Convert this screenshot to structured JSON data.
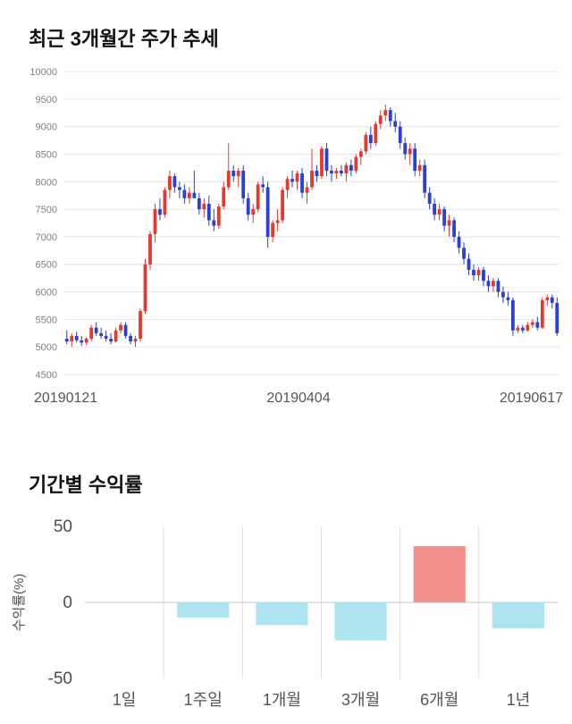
{
  "price_section": {
    "title": "최근 3개월간 주가 추세"
  },
  "returns_section": {
    "title": "기간별 수익률"
  },
  "chart_data": [
    {
      "type": "candlestick",
      "title": "최근 3개월간 주가 추세",
      "ylim": [
        4500,
        10000
      ],
      "ytick_step": 500,
      "xtick_labels": [
        "20190121",
        "20190404",
        "20190617"
      ],
      "colors": {
        "up": "#e23a2d",
        "down": "#2a40d4",
        "grid": "#e4e4e4",
        "axis_text": "#808080"
      },
      "candles": [
        [
          5150,
          5300,
          5050,
          5100
        ],
        [
          5100,
          5250,
          5000,
          5200
        ],
        [
          5200,
          5280,
          5080,
          5120
        ],
        [
          5120,
          5200,
          5020,
          5080
        ],
        [
          5080,
          5180,
          5030,
          5150
        ],
        [
          5150,
          5400,
          5100,
          5350
        ],
        [
          5350,
          5450,
          5200,
          5250
        ],
        [
          5250,
          5350,
          5150,
          5200
        ],
        [
          5200,
          5300,
          5100,
          5150
        ],
        [
          5150,
          5250,
          5050,
          5100
        ],
        [
          5100,
          5350,
          5080,
          5300
        ],
        [
          5300,
          5450,
          5250,
          5400
        ],
        [
          5400,
          5450,
          5150,
          5200
        ],
        [
          5200,
          5250,
          5050,
          5100
        ],
        [
          5100,
          5200,
          5000,
          5150
        ],
        [
          5150,
          5700,
          5100,
          5650
        ],
        [
          5650,
          6600,
          5600,
          6500
        ],
        [
          6500,
          7100,
          6400,
          7050
        ],
        [
          7050,
          7600,
          6900,
          7500
        ],
        [
          7500,
          7700,
          7300,
          7400
        ],
        [
          7400,
          7900,
          7350,
          7850
        ],
        [
          7850,
          8200,
          7700,
          8100
        ],
        [
          8100,
          8150,
          7800,
          7900
        ],
        [
          7900,
          8000,
          7700,
          7850
        ],
        [
          7850,
          7950,
          7600,
          7700
        ],
        [
          7700,
          7900,
          7600,
          7800
        ],
        [
          7800,
          8200,
          7750,
          7700
        ],
        [
          7700,
          7800,
          7400,
          7500
        ],
        [
          7500,
          7700,
          7350,
          7600
        ],
        [
          7600,
          7750,
          7200,
          7300
        ],
        [
          7300,
          7500,
          7100,
          7200
        ],
        [
          7200,
          7600,
          7150,
          7550
        ],
        [
          7550,
          8000,
          7500,
          7900
        ],
        [
          7900,
          8700,
          7850,
          8200
        ],
        [
          8200,
          8300,
          8000,
          8100
        ],
        [
          8100,
          8250,
          7900,
          8200
        ],
        [
          8200,
          8300,
          7600,
          7700
        ],
        [
          7700,
          7800,
          7300,
          7400
        ],
        [
          7400,
          7600,
          7250,
          7500
        ],
        [
          7500,
          8000,
          7450,
          7950
        ],
        [
          7950,
          8100,
          7800,
          7900
        ],
        [
          7900,
          8000,
          6800,
          7000
        ],
        [
          7000,
          7300,
          6900,
          7250
        ],
        [
          7250,
          7500,
          7100,
          7300
        ],
        [
          7300,
          7900,
          7250,
          7850
        ],
        [
          7850,
          8100,
          7700,
          8050
        ],
        [
          8050,
          8200,
          7900,
          8000
        ],
        [
          8000,
          8200,
          7850,
          8150
        ],
        [
          8150,
          8250,
          7700,
          7800
        ],
        [
          7800,
          8000,
          7600,
          7900
        ],
        [
          7900,
          8600,
          7850,
          8200
        ],
        [
          8200,
          8300,
          8000,
          8100
        ],
        [
          8100,
          8650,
          8050,
          8600
        ],
        [
          8600,
          8700,
          8100,
          8200
        ],
        [
          8200,
          8300,
          8000,
          8150
        ],
        [
          8150,
          8250,
          8050,
          8200
        ],
        [
          8200,
          8300,
          8100,
          8150
        ],
        [
          8150,
          8350,
          8000,
          8300
        ],
        [
          8300,
          8400,
          8100,
          8200
        ],
        [
          8200,
          8500,
          8150,
          8450
        ],
        [
          8450,
          8600,
          8300,
          8550
        ],
        [
          8550,
          8900,
          8500,
          8850
        ],
        [
          8850,
          9000,
          8600,
          8700
        ],
        [
          8700,
          9100,
          8650,
          9050
        ],
        [
          9050,
          9300,
          8950,
          9200
        ],
        [
          9200,
          9400,
          9100,
          9300
        ],
        [
          9300,
          9350,
          9000,
          9100
        ],
        [
          9100,
          9250,
          8900,
          9000
        ],
        [
          9000,
          9100,
          8600,
          8700
        ],
        [
          8700,
          8800,
          8400,
          8500
        ],
        [
          8500,
          8700,
          8300,
          8600
        ],
        [
          8600,
          8700,
          8100,
          8200
        ],
        [
          8200,
          8400,
          8100,
          8300
        ],
        [
          8300,
          8400,
          7700,
          7800
        ],
        [
          7800,
          7900,
          7500,
          7600
        ],
        [
          7600,
          7700,
          7300,
          7400
        ],
        [
          7400,
          7600,
          7300,
          7500
        ],
        [
          7500,
          7550,
          7100,
          7200
        ],
        [
          7200,
          7400,
          7000,
          7300
        ],
        [
          7300,
          7350,
          6900,
          7000
        ],
        [
          7000,
          7100,
          6700,
          6800
        ],
        [
          6800,
          6900,
          6500,
          6600
        ],
        [
          6600,
          6700,
          6300,
          6400
        ],
        [
          6400,
          6500,
          6200,
          6300
        ],
        [
          6300,
          6450,
          6200,
          6400
        ],
        [
          6400,
          6450,
          6100,
          6200
        ],
        [
          6200,
          6300,
          6000,
          6100
        ],
        [
          6100,
          6250,
          6000,
          6200
        ],
        [
          6200,
          6250,
          5900,
          6000
        ],
        [
          6000,
          6100,
          5800,
          5900
        ],
        [
          5900,
          6000,
          5750,
          5850
        ],
        [
          5850,
          5900,
          5200,
          5300
        ],
        [
          5300,
          5400,
          5250,
          5350
        ],
        [
          5350,
          5400,
          5250,
          5300
        ],
        [
          5300,
          5450,
          5280,
          5400
        ],
        [
          5400,
          5500,
          5350,
          5450
        ],
        [
          5450,
          5550,
          5300,
          5350
        ],
        [
          5350,
          5900,
          5330,
          5850
        ],
        [
          5850,
          5950,
          5750,
          5900
        ],
        [
          5900,
          5950,
          5700,
          5800
        ],
        [
          5800,
          5900,
          5200,
          5250
        ]
      ]
    },
    {
      "type": "bar",
      "title": "기간별 수익률",
      "ylabel": "수익률(%)",
      "categories": [
        "1일",
        "1주일",
        "1개월",
        "3개월",
        "6개월",
        "1년"
      ],
      "values": [
        0,
        -10,
        -15,
        -25,
        37,
        -17
      ],
      "ylim": [
        -50,
        50
      ],
      "yticks": [
        50,
        0,
        -50
      ],
      "colors": {
        "positive": "#f5918d",
        "negative": "#aee4f0",
        "grid": "#dedede",
        "zero_line": "#c9c9c9",
        "axis_text": "#4d4d4d"
      }
    }
  ]
}
